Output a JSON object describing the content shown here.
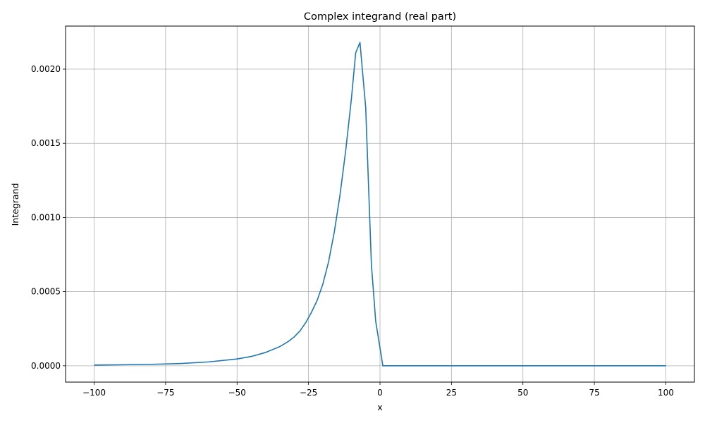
{
  "chart_data": {
    "type": "line",
    "title": "Complex integrand (real part)",
    "xlabel": "x",
    "ylabel": "Integrand",
    "xlim": [
      -110,
      110
    ],
    "ylim": [
      -0.00011,
      0.00229
    ],
    "grid": true,
    "line_color": "#1f77b4",
    "x_ticks": [
      -100,
      -75,
      -50,
      -25,
      0,
      25,
      50,
      75,
      100
    ],
    "x_tick_labels": [
      "−100",
      "−75",
      "−50",
      "−25",
      "0",
      "25",
      "50",
      "75",
      "100"
    ],
    "y_ticks": [
      0,
      0.0005,
      0.001,
      0.0015,
      0.002
    ],
    "y_tick_labels": [
      "0.0000",
      "0.0005",
      "0.0010",
      "0.0015",
      "0.0020"
    ],
    "series": [
      {
        "x": [
          -100,
          -90,
          -80,
          -70,
          -60,
          -50,
          -45,
          -40,
          -35,
          -32,
          -30,
          -28,
          -26,
          -24,
          -22,
          -20,
          -18,
          -16,
          -14,
          -12,
          -10,
          -8.5,
          -7,
          -5,
          -3,
          -1.5,
          1,
          10,
          25,
          50,
          75,
          100
        ],
        "y": [
          5e-06,
          7e-06,
          1e-05,
          1.5e-05,
          2.6e-05,
          4.6e-05,
          6.3e-05,
          9e-05,
          0.00013,
          0.000165,
          0.000195,
          0.000235,
          0.00029,
          0.00036,
          0.00044,
          0.00055,
          0.0007,
          0.0009,
          0.00115,
          0.00145,
          0.0018,
          0.00211,
          0.00218,
          0.00174,
          0.00068,
          0.0003,
          0.0,
          0.0,
          0.0,
          0.0,
          0.0,
          0.0
        ]
      }
    ]
  }
}
